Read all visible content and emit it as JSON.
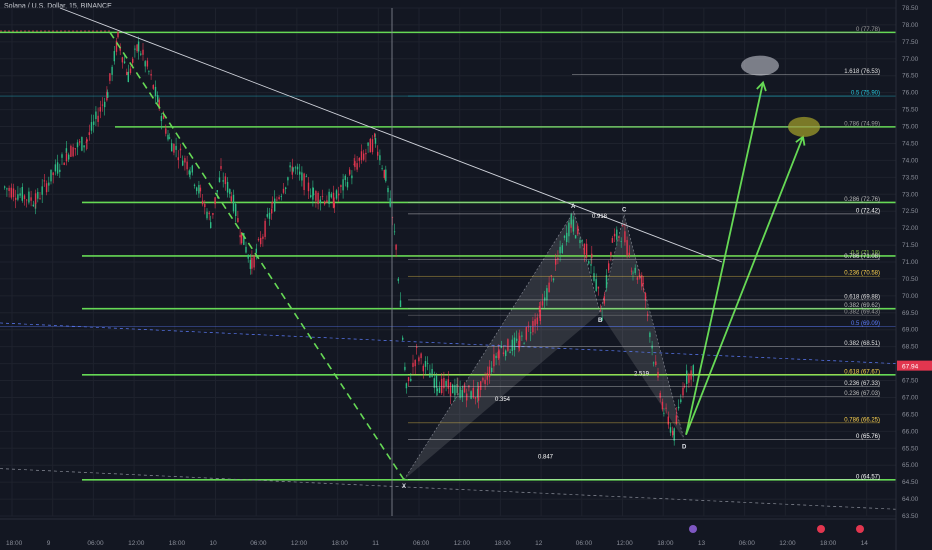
{
  "header": {
    "title": "Solana / U.S. Dollar, 15, BINANCE"
  },
  "current_price": "67.94",
  "chart_data": {
    "type": "candlestick",
    "title": "Solana / U.S. Dollar, 15, BINANCE",
    "ylim": [
      63.5,
      78.5
    ],
    "price_ticks": [
      "78.50",
      "78.00",
      "77.50",
      "77.00",
      "76.50",
      "76.00",
      "75.50",
      "75.00",
      "74.50",
      "74.00",
      "73.50",
      "73.00",
      "72.50",
      "72.00",
      "71.50",
      "71.00",
      "70.50",
      "70.00",
      "69.50",
      "69.00",
      "68.50",
      "68.00",
      "67.50",
      "67.00",
      "66.50",
      "66.00",
      "65.50",
      "65.00",
      "64.50",
      "64.00",
      "63.50"
    ],
    "time_ticks": [
      "18:00",
      "9",
      "06:00",
      "12:00",
      "18:00",
      "10",
      "06:00",
      "12:00",
      "18:00",
      "11",
      "06:00",
      "12:00",
      "18:00",
      "12",
      "06:00",
      "12:00",
      "18:00",
      "13",
      "06:00",
      "12:00",
      "18:00",
      "14"
    ],
    "price_path": [
      [
        0,
        73.2
      ],
      [
        3,
        72.8
      ],
      [
        6,
        74.2
      ],
      [
        8,
        74.6
      ],
      [
        10,
        76.0
      ],
      [
        11,
        77.6
      ],
      [
        12,
        76.5
      ],
      [
        13,
        77.4
      ],
      [
        14,
        76.6
      ],
      [
        15,
        75.6
      ],
      [
        16,
        74.6
      ],
      [
        18,
        73.8
      ],
      [
        19,
        73.0
      ],
      [
        20,
        72.2
      ],
      [
        21,
        73.6
      ],
      [
        22,
        73.0
      ],
      [
        23,
        71.8
      ],
      [
        24,
        70.9
      ],
      [
        26,
        72.6
      ],
      [
        28,
        73.8
      ],
      [
        30,
        73.0
      ],
      [
        32,
        72.8
      ],
      [
        34,
        73.8
      ],
      [
        36,
        74.6
      ],
      [
        37,
        73.5
      ],
      [
        38,
        71.5
      ],
      [
        39,
        67.2
      ],
      [
        40,
        68.3
      ],
      [
        42,
        67.4
      ],
      [
        44,
        67.2
      ],
      [
        46,
        67.1
      ],
      [
        48,
        68.4
      ],
      [
        50,
        68.6
      ],
      [
        52,
        69.5
      ],
      [
        55,
        72.2
      ],
      [
        57,
        71.0
      ],
      [
        58,
        69.5
      ],
      [
        59,
        71.6
      ],
      [
        60,
        71.9
      ],
      [
        61,
        70.8
      ],
      [
        62,
        70.4
      ],
      [
        63,
        68.2
      ],
      [
        64,
        66.6
      ],
      [
        65,
        65.9
      ],
      [
        66,
        67.5
      ],
      [
        67,
        67.9
      ]
    ],
    "fib_levels": [
      {
        "label": "0 (77.78)",
        "price": 77.78,
        "color": "#9e9e9e"
      },
      {
        "label": "1.618 (76.53)",
        "price": 76.53,
        "color": "#e0e0e0"
      },
      {
        "label": "0.5 (75.90)",
        "price": 75.9,
        "color": "#26c6da"
      },
      {
        "label": "0.786 (74.99)",
        "price": 74.99,
        "color": "#9e9e9e"
      },
      {
        "label": "0.286 (72.76)",
        "price": 72.76,
        "color": "#bdbdbd"
      },
      {
        "label": "0 (72.42)",
        "price": 72.42,
        "color": "#ffffff"
      },
      {
        "label": "0.5 (71.18)",
        "price": 71.18,
        "color": "#8bc34a"
      },
      {
        "label": "0.786 (71.08)",
        "price": 71.08,
        "color": "#e0e0e0"
      },
      {
        "label": "0.236 (70.58)",
        "price": 70.58,
        "color": "#ffd54f"
      },
      {
        "label": "0.618 (69.88)",
        "price": 69.88,
        "color": "#e0e0e0"
      },
      {
        "label": "0.382 (69.62)",
        "price": 69.62,
        "color": "#bdbdbd"
      },
      {
        "label": "0.382 (69.43)",
        "price": 69.43,
        "color": "#9e9e9e"
      },
      {
        "label": "0.5 (69.09)",
        "price": 69.09,
        "color": "#5c7cfa"
      },
      {
        "label": "0.382 (68.51)",
        "price": 68.51,
        "color": "#e0e0e0"
      },
      {
        "label": "0.618 (67.67)",
        "price": 67.67,
        "color": "#ffd54f"
      },
      {
        "label": "0.236 (67.33)",
        "price": 67.33,
        "color": "#e0e0e0"
      },
      {
        "label": "0.236 (67.03)",
        "price": 67.03,
        "color": "#bdbdbd"
      },
      {
        "label": "0.786 (66.25)",
        "price": 66.25,
        "color": "#ffd54f"
      },
      {
        "label": "0 (65.76)",
        "price": 65.76,
        "color": "#ffffff"
      },
      {
        "label": "0 (64.57)",
        "price": 64.57,
        "color": "#ffffff"
      }
    ],
    "green_levels": [
      77.78,
      74.99,
      72.76,
      71.18,
      69.62,
      67.67,
      64.57
    ],
    "harmonic_points": [
      {
        "label": "X",
        "price": 64.57
      },
      {
        "label": "A",
        "price": 72.5
      },
      {
        "label": "B",
        "price": 69.5
      },
      {
        "label": "C",
        "price": 72.4
      },
      {
        "label": "D",
        "price": 65.76
      }
    ],
    "ratios": [
      "0.918",
      "2.519",
      "0.354",
      "0.847"
    ],
    "targets": [
      76.53,
      74.99
    ]
  },
  "colors": {
    "green": "#66d955",
    "up": "#2ebd85",
    "down": "#e2364f",
    "bg": "#131722",
    "grid": "#1e222d"
  }
}
